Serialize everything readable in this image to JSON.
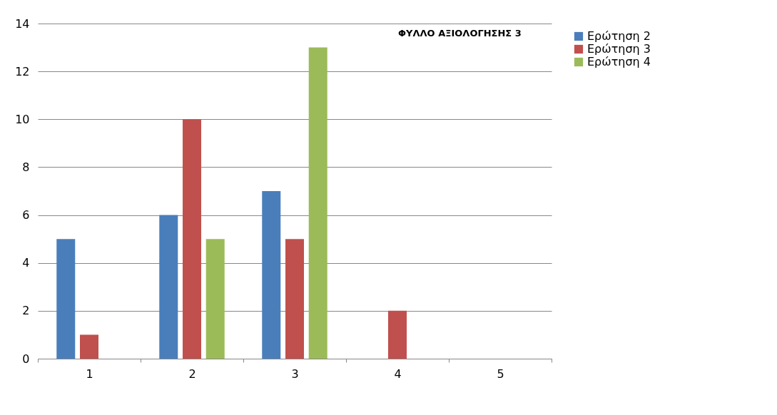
{
  "chart_data": {
    "type": "bar",
    "title": "ΦΥΛΛΟ ΑΞΙΟΛΟΓΗΣΗΣ 3",
    "categories": [
      "1",
      "2",
      "3",
      "4",
      "5"
    ],
    "series": [
      {
        "name": "Ερώτηση 2",
        "color": "#4a7ebb",
        "values": [
          5,
          6,
          7,
          null,
          null
        ]
      },
      {
        "name": "Ερώτηση 3",
        "color": "#c0504d",
        "values": [
          1,
          10,
          5,
          2,
          null
        ]
      },
      {
        "name": "Ερώτηση 4",
        "color": "#9bbb59",
        "values": [
          null,
          5,
          13,
          null,
          null
        ]
      }
    ],
    "ylim": [
      0,
      14
    ],
    "yticks": [
      0,
      2,
      4,
      6,
      8,
      10,
      12,
      14
    ],
    "grid": "y",
    "legend": "right"
  }
}
